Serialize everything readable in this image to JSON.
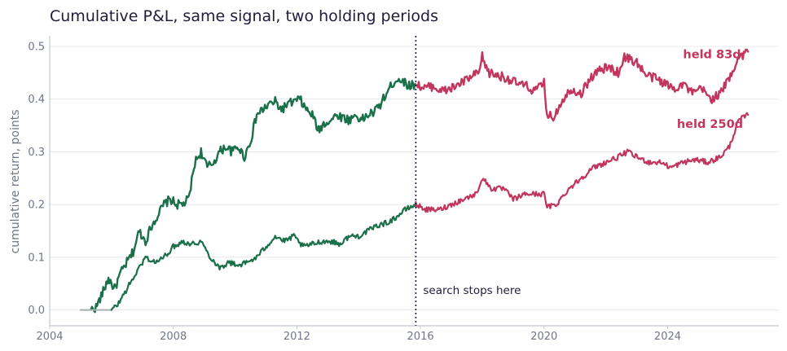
{
  "chart_data": {
    "type": "line",
    "title": "Cumulative P&L, same signal, two holding periods",
    "xlabel": "",
    "ylabel": "cumulative return, points",
    "xlim": [
      2004,
      2027.6
    ],
    "ylim": [
      -0.03,
      0.52
    ],
    "x_ticks": [
      2004,
      2008,
      2012,
      2016,
      2020,
      2024
    ],
    "x_tick_labels": [
      "2004",
      "2008",
      "2012",
      "2016",
      "2020",
      "2024"
    ],
    "y_ticks": [
      0.0,
      0.1,
      0.2,
      0.3,
      0.4,
      0.5
    ],
    "y_tick_labels": [
      "0.0",
      "0.1",
      "0.2",
      "0.3",
      "0.4",
      "0.5"
    ],
    "grid": "horizontal",
    "vline": {
      "x": 2015.85,
      "style": "dotted",
      "color": "#1f1d3a",
      "label": "search stops here"
    },
    "in_sample_color": "#1a7048",
    "out_sample_color": "#c2365e",
    "flat_color": "#a9b4b0",
    "series": [
      {
        "name": "held 83d",
        "label_x": 2024.5,
        "label_y": 0.485,
        "x": [
          2005.0,
          2005.3,
          2005.5,
          2005.7,
          2005.9,
          2006.1,
          2006.3,
          2006.5,
          2006.7,
          2006.9,
          2007.1,
          2007.3,
          2007.5,
          2007.7,
          2007.9,
          2008.1,
          2008.3,
          2008.5,
          2008.7,
          2008.9,
          2009.1,
          2009.3,
          2009.5,
          2009.7,
          2009.9,
          2010.1,
          2010.3,
          2010.5,
          2010.7,
          2010.9,
          2011.1,
          2011.3,
          2011.5,
          2011.7,
          2011.9,
          2012.1,
          2012.3,
          2012.5,
          2012.7,
          2012.9,
          2013.1,
          2013.3,
          2013.5,
          2013.7,
          2013.9,
          2014.1,
          2014.3,
          2014.5,
          2014.7,
          2014.9,
          2015.1,
          2015.3,
          2015.5,
          2015.7,
          2015.85,
          2016.1,
          2016.4,
          2016.7,
          2017.0,
          2017.3,
          2017.6,
          2017.9,
          2018.0,
          2018.2,
          2018.5,
          2018.8,
          2019.1,
          2019.4,
          2019.7,
          2020.0,
          2020.1,
          2020.3,
          2020.6,
          2020.9,
          2021.2,
          2021.5,
          2021.8,
          2022.1,
          2022.4,
          2022.6,
          2022.8,
          2023.0,
          2023.3,
          2023.6,
          2023.9,
          2024.2,
          2024.5,
          2024.8,
          2025.1,
          2025.4,
          2025.7,
          2026.0,
          2026.3,
          2026.6
        ],
        "y": [
          0.0,
          0.0,
          0.005,
          0.03,
          0.06,
          0.04,
          0.07,
          0.09,
          0.11,
          0.15,
          0.13,
          0.16,
          0.18,
          0.2,
          0.21,
          0.2,
          0.2,
          0.21,
          0.28,
          0.3,
          0.27,
          0.28,
          0.3,
          0.31,
          0.3,
          0.31,
          0.29,
          0.32,
          0.37,
          0.38,
          0.39,
          0.395,
          0.38,
          0.39,
          0.395,
          0.4,
          0.38,
          0.37,
          0.34,
          0.355,
          0.36,
          0.37,
          0.365,
          0.36,
          0.37,
          0.36,
          0.37,
          0.375,
          0.39,
          0.41,
          0.43,
          0.44,
          0.43,
          0.425,
          0.43,
          0.42,
          0.425,
          0.415,
          0.42,
          0.43,
          0.44,
          0.45,
          0.48,
          0.45,
          0.445,
          0.44,
          0.43,
          0.425,
          0.415,
          0.43,
          0.37,
          0.365,
          0.4,
          0.42,
          0.41,
          0.44,
          0.455,
          0.46,
          0.45,
          0.48,
          0.475,
          0.47,
          0.445,
          0.44,
          0.43,
          0.42,
          0.43,
          0.41,
          0.42,
          0.4,
          0.41,
          0.44,
          0.48,
          0.49
        ]
      },
      {
        "name": "held 250d",
        "label_x": 2024.3,
        "label_y": 0.353,
        "x": [
          2005.0,
          2005.5,
          2006.0,
          2006.2,
          2006.5,
          2006.8,
          2007.1,
          2007.4,
          2007.7,
          2008.0,
          2008.3,
          2008.6,
          2008.9,
          2009.2,
          2009.5,
          2009.8,
          2010.1,
          2010.4,
          2010.7,
          2011.0,
          2011.3,
          2011.6,
          2011.9,
          2012.2,
          2012.5,
          2012.8,
          2013.1,
          2013.4,
          2013.7,
          2014.0,
          2014.3,
          2014.6,
          2014.9,
          2015.2,
          2015.5,
          2015.85,
          2016.2,
          2016.6,
          2017.0,
          2017.4,
          2017.8,
          2018.0,
          2018.3,
          2018.7,
          2019.0,
          2019.4,
          2019.8,
          2020.0,
          2020.1,
          2020.4,
          2020.8,
          2021.2,
          2021.6,
          2022.0,
          2022.4,
          2022.7,
          2023.0,
          2023.4,
          2023.8,
          2024.1,
          2024.5,
          2024.9,
          2025.3,
          2025.7,
          2026.0,
          2026.3,
          2026.6
        ],
        "y": [
          0.0,
          0.0,
          0.0,
          0.01,
          0.04,
          0.07,
          0.1,
          0.09,
          0.1,
          0.12,
          0.13,
          0.125,
          0.13,
          0.1,
          0.08,
          0.09,
          0.085,
          0.09,
          0.1,
          0.12,
          0.14,
          0.13,
          0.14,
          0.12,
          0.125,
          0.13,
          0.13,
          0.125,
          0.14,
          0.14,
          0.15,
          0.16,
          0.165,
          0.175,
          0.19,
          0.2,
          0.19,
          0.19,
          0.2,
          0.21,
          0.22,
          0.25,
          0.23,
          0.23,
          0.21,
          0.22,
          0.22,
          0.22,
          0.195,
          0.2,
          0.23,
          0.25,
          0.27,
          0.28,
          0.29,
          0.3,
          0.29,
          0.28,
          0.28,
          0.27,
          0.28,
          0.285,
          0.28,
          0.29,
          0.31,
          0.36,
          0.37
        ]
      }
    ]
  }
}
